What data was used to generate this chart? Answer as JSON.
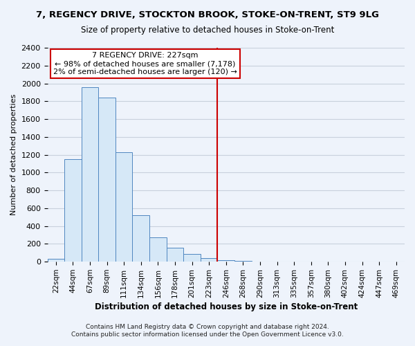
{
  "title": "7, REGENCY DRIVE, STOCKTON BROOK, STOKE-ON-TRENT, ST9 9LG",
  "subtitle": "Size of property relative to detached houses in Stoke-on-Trent",
  "xlabel": "Distribution of detached houses by size in Stoke-on-Trent",
  "ylabel": "Number of detached properties",
  "footer_line1": "Contains HM Land Registry data © Crown copyright and database right 2024.",
  "footer_line2": "Contains public sector information licensed under the Open Government Licence v3.0.",
  "annotation_title": "7 REGENCY DRIVE: 227sqm",
  "annotation_line1": "← 98% of detached houses are smaller (7,178)",
  "annotation_line2": "2% of semi-detached houses are larger (120) →",
  "bar_color": "#d6e8f7",
  "bar_edge_color": "#4f86c0",
  "highlight_line_color": "#cc0000",
  "annotation_box_color": "#ffffff",
  "annotation_box_edge": "#cc0000",
  "background_color": "#eef3fb",
  "grid_color": "#c8d0dc",
  "categories": [
    "22sqm",
    "44sqm",
    "67sqm",
    "89sqm",
    "111sqm",
    "134sqm",
    "156sqm",
    "178sqm",
    "201sqm",
    "223sqm",
    "246sqm",
    "268sqm",
    "290sqm",
    "313sqm",
    "335sqm",
    "357sqm",
    "380sqm",
    "402sqm",
    "424sqm",
    "447sqm",
    "469sqm"
  ],
  "values": [
    30,
    1150,
    1960,
    1840,
    1230,
    520,
    270,
    155,
    90,
    40,
    20,
    10,
    5,
    5,
    0,
    5,
    0,
    0,
    5,
    0,
    0
  ],
  "highlight_index": 9,
  "ylim": [
    0,
    2400
  ],
  "yticks": [
    0,
    200,
    400,
    600,
    800,
    1000,
    1200,
    1400,
    1600,
    1800,
    2000,
    2200,
    2400
  ]
}
